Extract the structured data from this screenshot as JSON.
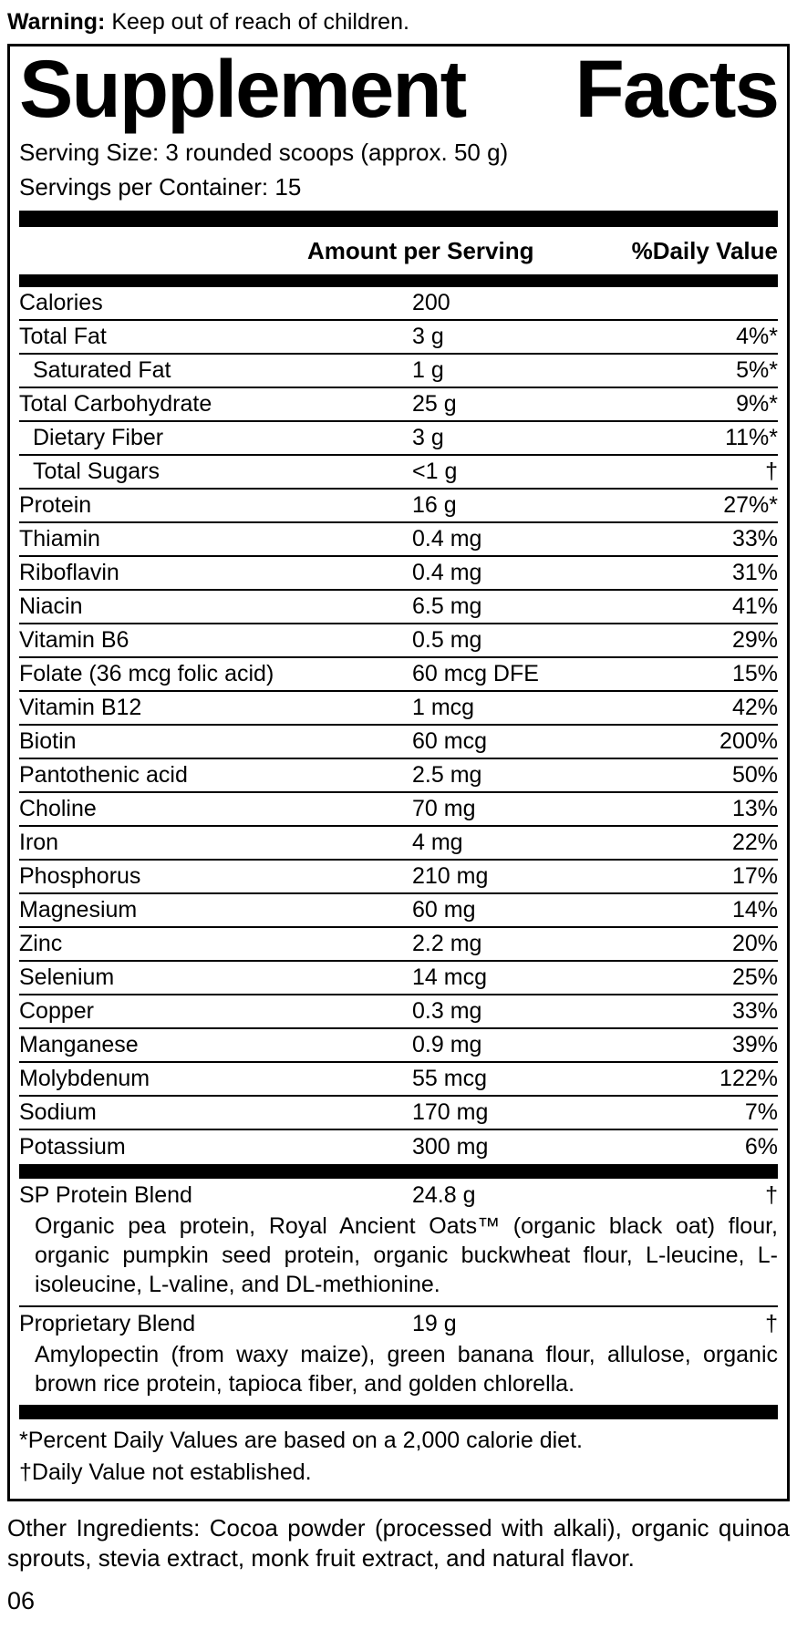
{
  "colors": {
    "text": "#000000",
    "background": "#ffffff"
  },
  "warning": {
    "label": "Warning:",
    "text": " Keep out of reach of children."
  },
  "panel": {
    "title_left": "Supplement",
    "title_right": "Facts",
    "serving_size": "Serving Size: 3 rounded scoops (approx. 50 g)",
    "servings_per_container": "Servings per Container: 15",
    "columns": {
      "amount": "Amount per Serving",
      "daily_value": "%Daily Value"
    },
    "rows": [
      {
        "name": "Calories",
        "amount": "200",
        "dv": "",
        "indent": false
      },
      {
        "name": "Total Fat",
        "amount": "3 g",
        "dv": "4%*",
        "indent": false
      },
      {
        "name": "Saturated Fat",
        "amount": "1 g",
        "dv": "5%*",
        "indent": true
      },
      {
        "name": "Total Carbohydrate",
        "amount": "25 g",
        "dv": "9%*",
        "indent": false
      },
      {
        "name": "Dietary Fiber",
        "amount": "3 g",
        "dv": "11%*",
        "indent": true
      },
      {
        "name": "Total Sugars",
        "amount": "<1 g",
        "dv": "†",
        "indent": true
      },
      {
        "name": "Protein",
        "amount": "16 g",
        "dv": "27%*",
        "indent": false
      },
      {
        "name": "Thiamin",
        "amount": "0.4 mg",
        "dv": "33%",
        "indent": false
      },
      {
        "name": "Riboflavin",
        "amount": "0.4 mg",
        "dv": "31%",
        "indent": false
      },
      {
        "name": "Niacin",
        "amount": "6.5 mg",
        "dv": "41%",
        "indent": false
      },
      {
        "name": "Vitamin B6",
        "amount": "0.5 mg",
        "dv": "29%",
        "indent": false
      },
      {
        "name": "Folate (36 mcg folic acid)",
        "amount": "60 mcg DFE",
        "dv": "15%",
        "indent": false
      },
      {
        "name": "Vitamin B12",
        "amount": "1 mcg",
        "dv": "42%",
        "indent": false
      },
      {
        "name": "Biotin",
        "amount": "60 mcg",
        "dv": "200%",
        "indent": false
      },
      {
        "name": "Pantothenic acid",
        "amount": "2.5 mg",
        "dv": "50%",
        "indent": false
      },
      {
        "name": "Choline",
        "amount": "70 mg",
        "dv": "13%",
        "indent": false
      },
      {
        "name": "Iron",
        "amount": "4 mg",
        "dv": "22%",
        "indent": false
      },
      {
        "name": "Phosphorus",
        "amount": "210 mg",
        "dv": "17%",
        "indent": false
      },
      {
        "name": "Magnesium",
        "amount": "60 mg",
        "dv": "14%",
        "indent": false
      },
      {
        "name": "Zinc",
        "amount": "2.2 mg",
        "dv": "20%",
        "indent": false
      },
      {
        "name": "Selenium",
        "amount": "14 mcg",
        "dv": "25%",
        "indent": false
      },
      {
        "name": "Copper",
        "amount": "0.3 mg",
        "dv": "33%",
        "indent": false
      },
      {
        "name": "Manganese",
        "amount": "0.9 mg",
        "dv": "39%",
        "indent": false
      },
      {
        "name": "Molybdenum",
        "amount": "55 mcg",
        "dv": "122%",
        "indent": false
      },
      {
        "name": "Sodium",
        "amount": "170 mg",
        "dv": "7%",
        "indent": false
      },
      {
        "name": "Potassium",
        "amount": "300 mg",
        "dv": "6%",
        "indent": false
      }
    ],
    "blends": [
      {
        "name": "SP Protein Blend",
        "amount": "24.8 g",
        "dv": "†",
        "desc": "Organic pea protein, Royal Ancient Oats™ (organic black oat) flour, organic pumpkin seed protein, organic buckwheat flour, L-leucine, L-isoleucine, L-valine, and DL-methionine."
      },
      {
        "name": "Proprietary Blend",
        "amount": "19 g",
        "dv": "†",
        "desc": "Amylopectin (from waxy maize), green banana flour, allulose, organic brown rice protein, tapioca fiber, and golden chlorella."
      }
    ],
    "footnotes": [
      "*Percent Daily Values are based on a 2,000 calorie diet.",
      "†Daily Value not established."
    ]
  },
  "other_ingredients": "Other Ingredients: Cocoa powder (processed with alkali), organic quinoa sprouts, stevia extract, monk fruit extract, and natural flavor.",
  "page_number": "06"
}
